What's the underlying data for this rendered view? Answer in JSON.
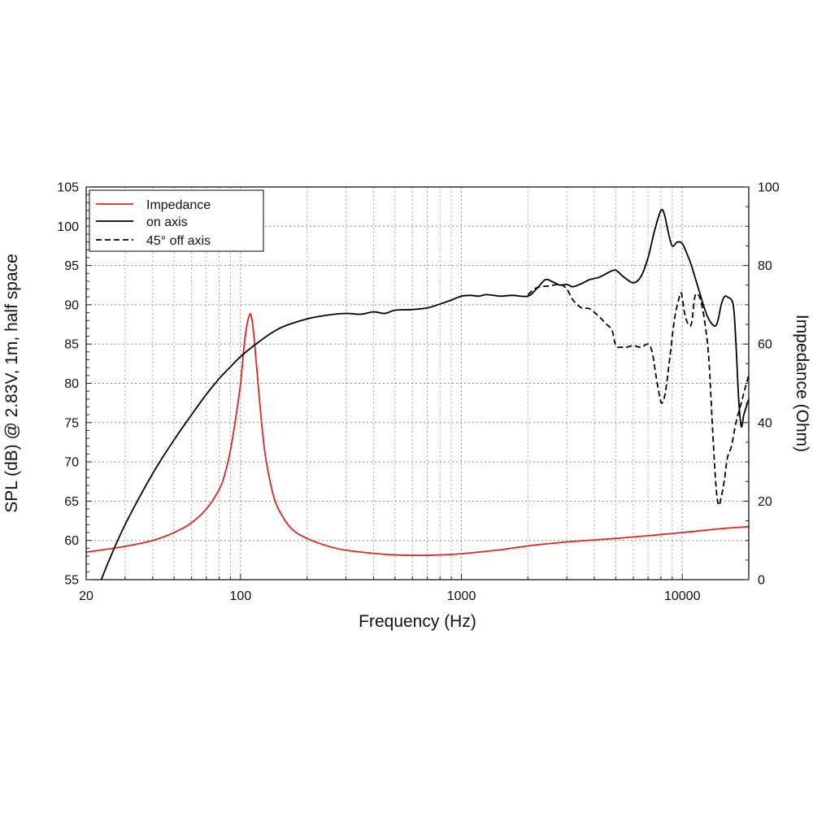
{
  "chart_data": {
    "type": "line",
    "xlabel": "Frequency (Hz)",
    "ylabel_left": "SPL (dB) @ 2.83V, 1m, half space",
    "ylabel_right": "Impedance (Ohm)",
    "x_scale": "log",
    "xlim": [
      20,
      20000
    ],
    "ylim_left": [
      55,
      105
    ],
    "ylim_right": [
      0,
      100
    ],
    "x_ticks": [
      {
        "value": 20,
        "label": "20"
      },
      {
        "value": 100,
        "label": "100"
      },
      {
        "value": 1000,
        "label": "1000"
      },
      {
        "value": 10000,
        "label": "10000"
      }
    ],
    "y_ticks_left": [
      "55",
      "60",
      "65",
      "70",
      "75",
      "80",
      "85",
      "90",
      "95",
      "100",
      "105"
    ],
    "y_ticks_right": [
      "0",
      "20",
      "40",
      "60",
      "80",
      "100"
    ],
    "grid": true,
    "legend_position": "top-left",
    "colors": {
      "impedance": "#d42a22",
      "on_axis": "#000000",
      "off_axis": "#000000"
    },
    "series": [
      {
        "name": "Impedance",
        "axis": "right",
        "style": "solid",
        "x": [
          20,
          30,
          40,
          50,
          60,
          70,
          80,
          85,
          90,
          95,
          100,
          104,
          107,
          110,
          112,
          115,
          120,
          125,
          130,
          140,
          150,
          170,
          200,
          250,
          300,
          400,
          500,
          600,
          700,
          800,
          1000,
          1500,
          2000,
          3000,
          5000,
          7000,
          10000,
          15000,
          20000
        ],
        "values": [
          7,
          8.5,
          10,
          12,
          14.5,
          18,
          23,
          27,
          33,
          41,
          50,
          60,
          65,
          67.5,
          67,
          62,
          50,
          39,
          31,
          22,
          17.5,
          13,
          10.5,
          8.5,
          7.5,
          6.7,
          6.3,
          6.2,
          6.2,
          6.3,
          6.6,
          7.6,
          8.6,
          9.6,
          10.5,
          11.2,
          12,
          13,
          13.5
        ]
      },
      {
        "name": "on axis",
        "axis": "left",
        "style": "solid",
        "x": [
          22,
          25,
          30,
          40,
          50,
          60,
          70,
          80,
          90,
          100,
          120,
          150,
          200,
          250,
          300,
          350,
          400,
          450,
          500,
          600,
          700,
          800,
          900,
          1000,
          1100,
          1200,
          1300,
          1500,
          1700,
          2000,
          2200,
          2400,
          2600,
          2800,
          3000,
          3200,
          3500,
          3800,
          4200,
          4700,
          5000,
          5400,
          6000,
          6500,
          7000,
          7500,
          8000,
          8300,
          8600,
          9000,
          9500,
          10000,
          10500,
          11000,
          12000,
          13000,
          14000,
          14500,
          15000,
          15500,
          16000,
          17000,
          17500,
          18000,
          18500,
          19000,
          20000
        ],
        "values": [
          53,
          57,
          62,
          68.5,
          72.8,
          76,
          78.6,
          80.6,
          82.1,
          83.4,
          85.2,
          87,
          88.2,
          88.7,
          88.9,
          88.8,
          89.1,
          88.9,
          89.3,
          89.4,
          89.6,
          90.1,
          90.6,
          91.1,
          91.2,
          91.1,
          91.3,
          91.1,
          91.2,
          91.1,
          92.1,
          93.2,
          92.9,
          92.5,
          92.6,
          92.3,
          92.7,
          93.2,
          93.5,
          94.2,
          94.4,
          93.6,
          92.8,
          93.6,
          96,
          99.5,
          102,
          101.5,
          99.5,
          97.5,
          98,
          97.8,
          96.5,
          95,
          91.5,
          88.5,
          87.3,
          88,
          90,
          91,
          91,
          90,
          85,
          78,
          74.5,
          76,
          78
        ]
      },
      {
        "name": "45° off axis",
        "axis": "left",
        "style": "dashed",
        "x": [
          2000,
          2200,
          2500,
          2800,
          3000,
          3200,
          3500,
          3800,
          4200,
          4500,
          4800,
          5000,
          5300,
          5600,
          6000,
          6500,
          7000,
          7300,
          7600,
          7900,
          8100,
          8400,
          8800,
          9200,
          9600,
          9900,
          10200,
          10600,
          11000,
          11400,
          11800,
          12200,
          12700,
          13200,
          13700,
          14200,
          14600,
          15000,
          15500,
          16000,
          16700,
          17500,
          18500,
          19300,
          20000
        ],
        "values": [
          91.3,
          92.2,
          92.4,
          92.6,
          92,
          90.6,
          89.6,
          89.5,
          88.5,
          87.6,
          86.8,
          84.8,
          84.6,
          84.6,
          84.8,
          84.6,
          85,
          84,
          81,
          78.3,
          77.5,
          79,
          83.5,
          88,
          90.5,
          91.5,
          89.2,
          87.6,
          87.6,
          91,
          91.3,
          90.2,
          87.4,
          83,
          74.4,
          67,
          64.5,
          65.5,
          67.6,
          70.5,
          72,
          75,
          77.5,
          79.5,
          81
        ]
      }
    ]
  }
}
